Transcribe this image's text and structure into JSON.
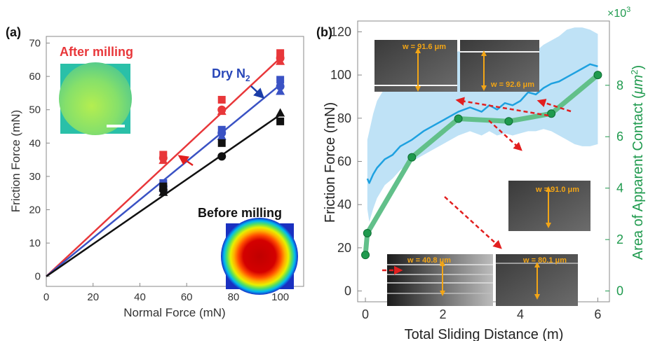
{
  "chart_data": [
    {
      "panel_label": "(a)",
      "type": "scatter",
      "xlabel": "Normal Force (mN)",
      "ylabel": "Friction Force (mN)",
      "xlim": [
        0,
        110
      ],
      "ylim": [
        -3,
        72
      ],
      "xticks": [
        0,
        20,
        40,
        60,
        80,
        100
      ],
      "yticks": [
        0,
        10,
        20,
        30,
        40,
        50,
        60,
        70
      ],
      "grid": false,
      "series": [
        {
          "name": "After milling",
          "color": "#e8373a",
          "points": [
            [
              50,
              36.5
            ],
            [
              50,
              35.5
            ],
            [
              50,
              34.8
            ],
            [
              75,
              53
            ],
            [
              75,
              50
            ],
            [
              75,
              49.5
            ],
            [
              100,
              67
            ],
            [
              100,
              65.5
            ],
            [
              100,
              64.5
            ]
          ],
          "fit": [
            [
              0,
              0
            ],
            [
              100,
              65.5
            ]
          ]
        },
        {
          "name": "Dry N₂",
          "color": "#3a52c4",
          "points": [
            [
              50,
              28
            ],
            [
              50,
              27
            ],
            [
              50,
              26.5
            ],
            [
              75,
              44
            ],
            [
              75,
              43
            ],
            [
              75,
              42
            ],
            [
              100,
              59
            ],
            [
              100,
              57
            ],
            [
              100,
              55.5
            ]
          ],
          "fit": [
            [
              0,
              0
            ],
            [
              100,
              57.5
            ]
          ]
        },
        {
          "name": "Before milling",
          "color": "#111111",
          "points": [
            [
              50,
              27
            ],
            [
              50,
              26
            ],
            [
              50,
              25.2
            ],
            [
              75,
              40
            ],
            [
              75,
              36
            ],
            [
              100,
              49
            ],
            [
              100,
              46.5
            ]
          ],
          "fit": [
            [
              0,
              0
            ],
            [
              100,
              48.5
            ]
          ]
        }
      ],
      "annotations": {
        "after_milling": "After milling",
        "dry_n2": "Dry N",
        "dry_n2_sub": "2",
        "before_milling": "Before milling"
      },
      "insets": [
        "uniform-green-contact-map",
        "concentric-rainbow-contact-map"
      ]
    },
    {
      "panel_label": "(b)",
      "type": "line",
      "xlabel": "Total Sliding Distance (m)",
      "ylabel": "Friction Force (mN)",
      "ylabel_right_prefix": "Area of Apparent Contact (",
      "ylabel_right_unit": "μm",
      "ylabel_right_exp": "2",
      "ylabel_right_suffix": ")",
      "right_multiplier_base": "×10",
      "right_multiplier_exp": "3",
      "xlim": [
        -0.2,
        6.3
      ],
      "ylim": [
        -5,
        125
      ],
      "ylim_right": [
        -0.42,
        10.5
      ],
      "xticks": [
        0,
        2,
        4,
        6
      ],
      "yticks": [
        0,
        20,
        40,
        60,
        80,
        100,
        120
      ],
      "yticks_right": [
        0,
        2,
        4,
        6,
        8
      ],
      "grid": false,
      "series": [
        {
          "name": "Friction force",
          "axis": "left",
          "color": "#1ea1e0",
          "band_color": "#bfe2f6",
          "x": [
            0.05,
            0.1,
            0.2,
            0.3,
            0.5,
            0.7,
            0.9,
            1.2,
            1.5,
            1.8,
            2.1,
            2.4,
            2.7,
            3.0,
            3.2,
            3.4,
            3.6,
            3.8,
            4.0,
            4.2,
            4.4,
            4.6,
            4.8,
            5.0,
            5.2,
            5.4,
            5.6,
            5.8,
            6.0
          ],
          "y": [
            52,
            50,
            54,
            57,
            61,
            63,
            67,
            70,
            74,
            77,
            80,
            83,
            85,
            83,
            86,
            84,
            87,
            86,
            88,
            92,
            91,
            94,
            96,
            97,
            99,
            101,
            103,
            105,
            104
          ],
          "band_upper": [
            70,
            74,
            82,
            88,
            94,
            96,
            97,
            97,
            100,
            104,
            108,
            111,
            109,
            103,
            101,
            99,
            101,
            103,
            105,
            108,
            111,
            114,
            116,
            118,
            121,
            122,
            122,
            121,
            119
          ],
          "band_lower": [
            38,
            32,
            38,
            43,
            49,
            52,
            56,
            60,
            63,
            66,
            69,
            72,
            74,
            72,
            74,
            72,
            73,
            72,
            73,
            74,
            74,
            75,
            74,
            72,
            70,
            68,
            67,
            67,
            68
          ]
        },
        {
          "name": "Apparent contact area",
          "axis": "right",
          "color": "#62c08a",
          "marker_color": "#1f9a4e",
          "x": [
            0.0,
            0.05,
            1.2,
            2.4,
            3.7,
            4.8,
            6.0
          ],
          "y": [
            1.4,
            2.25,
            5.2,
            6.7,
            6.6,
            6.9,
            8.4
          ]
        }
      ],
      "inset_labels": [
        "w = 91.6 μm",
        "w = 92.6 μm",
        "w = 91.0 μm",
        "w = 40.8 μm",
        "w = 80.1 μm"
      ]
    }
  ]
}
